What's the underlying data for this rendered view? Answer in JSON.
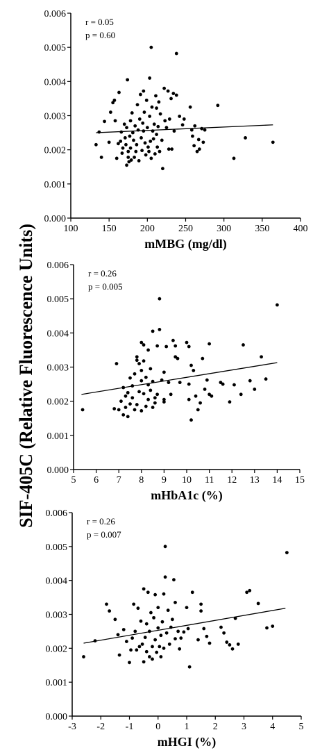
{
  "ylabel": "SIF-405C (Relative Fluorescence Units)",
  "chart_data": [
    {
      "type": "scatter",
      "xlabel": "mMBG (mg/dl)",
      "xlim": [
        100,
        400
      ],
      "xticks": [
        "100",
        "150",
        "200",
        "250",
        "300",
        "350",
        "400"
      ],
      "ylim": [
        0,
        0.006
      ],
      "yticks": [
        "0.000",
        "0.001",
        "0.002",
        "0.003",
        "0.004",
        "0.005",
        "0.006"
      ],
      "stats": [
        "r = 0.05",
        "p = 0.60"
      ],
      "fit_line": [
        [
          133,
          0.0025
        ],
        [
          364,
          0.00273
        ]
      ],
      "points": [
        [
          133,
          0.00215
        ],
        [
          137,
          0.00252
        ],
        [
          140,
          0.00178
        ],
        [
          144,
          0.00283
        ],
        [
          150,
          0.00222
        ],
        [
          152,
          0.0031
        ],
        [
          155,
          0.00338
        ],
        [
          157,
          0.00345
        ],
        [
          158,
          0.00285
        ],
        [
          160,
          0.00175
        ],
        [
          162,
          0.00218
        ],
        [
          163,
          0.00368
        ],
        [
          165,
          0.00225
        ],
        [
          166,
          0.00252
        ],
        [
          167,
          0.0019
        ],
        [
          168,
          0.00205
        ],
        [
          170,
          0.00275
        ],
        [
          171,
          0.00235
        ],
        [
          172,
          0.00215
        ],
        [
          173,
          0.00155
        ],
        [
          173,
          0.00265
        ],
        [
          174,
          0.00405
        ],
        [
          175,
          0.00178
        ],
        [
          175,
          0.00195
        ],
        [
          176,
          0.00165
        ],
        [
          177,
          0.0024
        ],
        [
          178,
          0.00285
        ],
        [
          178,
          0.00205
        ],
        [
          179,
          0.0017
        ],
        [
          180,
          0.00308
        ],
        [
          181,
          0.0025
        ],
        [
          182,
          0.00228
        ],
        [
          183,
          0.00178
        ],
        [
          184,
          0.0027
        ],
        [
          185,
          0.00195
        ],
        [
          186,
          0.00215
        ],
        [
          187,
          0.00332
        ],
        [
          188,
          0.00258
        ],
        [
          189,
          0.00168
        ],
        [
          190,
          0.0029
        ],
        [
          191,
          0.00362
        ],
        [
          192,
          0.00235
        ],
        [
          193,
          0.00198
        ],
        [
          194,
          0.00278
        ],
        [
          195,
          0.00372
        ],
        [
          195,
          0.00255
        ],
        [
          196,
          0.0031
        ],
        [
          197,
          0.0022
        ],
        [
          198,
          0.00185
        ],
        [
          199,
          0.00345
        ],
        [
          200,
          0.00265
        ],
        [
          201,
          0.00208
        ],
        [
          202,
          0.00195
        ],
        [
          203,
          0.00298
        ],
        [
          203,
          0.0041
        ],
        [
          204,
          0.00225
        ],
        [
          205,
          0.005
        ],
        [
          205,
          0.00175
        ],
        [
          206,
          0.00325
        ],
        [
          207,
          0.00255
        ],
        [
          208,
          0.00232
        ],
        [
          209,
          0.00275
        ],
        [
          210,
          0.00188
        ],
        [
          211,
          0.00358
        ],
        [
          212,
          0.00322
        ],
        [
          212,
          0.00245
        ],
        [
          213,
          0.00208
        ],
        [
          214,
          0.00268
        ],
        [
          215,
          0.0034
        ],
        [
          216,
          0.00195
        ],
        [
          217,
          0.00305
        ],
        [
          219,
          0.00228
        ],
        [
          220,
          0.00145
        ],
        [
          222,
          0.0038
        ],
        [
          223,
          0.00285
        ],
        [
          225,
          0.00265
        ],
        [
          227,
          0.00372
        ],
        [
          228,
          0.00202
        ],
        [
          229,
          0.0029
        ],
        [
          231,
          0.0035
        ],
        [
          232,
          0.00202
        ],
        [
          234,
          0.00365
        ],
        [
          235,
          0.00255
        ],
        [
          238,
          0.0036
        ],
        [
          238,
          0.00482
        ],
        [
          242,
          0.00298
        ],
        [
          246,
          0.00273
        ],
        [
          248,
          0.0029
        ],
        [
          256,
          0.00325
        ],
        [
          258,
          0.00258
        ],
        [
          259,
          0.0024
        ],
        [
          261,
          0.00212
        ],
        [
          262,
          0.0027
        ],
        [
          265,
          0.00195
        ],
        [
          267,
          0.0023
        ],
        [
          268,
          0.00202
        ],
        [
          271,
          0.00262
        ],
        [
          273,
          0.00222
        ],
        [
          275,
          0.00258
        ],
        [
          292,
          0.0033
        ],
        [
          313,
          0.00175
        ],
        [
          328,
          0.00235
        ],
        [
          364,
          0.00222
        ]
      ]
    },
    {
      "type": "scatter",
      "xlabel": "mHbA1c (%)",
      "xlim": [
        5,
        15
      ],
      "xticks": [
        "5",
        "6",
        "7",
        "8",
        "9",
        "10",
        "11",
        "12",
        "13",
        "14",
        "15"
      ],
      "ylim": [
        0,
        0.006
      ],
      "yticks": [
        "0.000",
        "0.001",
        "0.002",
        "0.003",
        "0.004",
        "0.005",
        "0.006"
      ],
      "stats": [
        "r = 0.26",
        "p = 0.005"
      ],
      "fit_line": [
        [
          5.35,
          0.0022
        ],
        [
          14.0,
          0.00313
        ]
      ],
      "points": [
        [
          5.4,
          0.00175
        ],
        [
          6.8,
          0.00178
        ],
        [
          6.9,
          0.0031
        ],
        [
          7.0,
          0.00175
        ],
        [
          7.1,
          0.002
        ],
        [
          7.2,
          0.0016
        ],
        [
          7.2,
          0.0024
        ],
        [
          7.3,
          0.00215
        ],
        [
          7.3,
          0.00182
        ],
        [
          7.4,
          0.00225
        ],
        [
          7.4,
          0.00155
        ],
        [
          7.5,
          0.00192
        ],
        [
          7.5,
          0.00268
        ],
        [
          7.6,
          0.0021
        ],
        [
          7.6,
          0.00245
        ],
        [
          7.7,
          0.00175
        ],
        [
          7.7,
          0.0028
        ],
        [
          7.8,
          0.0032
        ],
        [
          7.8,
          0.0019
        ],
        [
          7.8,
          0.0033
        ],
        [
          7.9,
          0.0031
        ],
        [
          7.9,
          0.00228
        ],
        [
          8.0,
          0.00372
        ],
        [
          8.0,
          0.0026
        ],
        [
          8.0,
          0.00172
        ],
        [
          8.0,
          0.0029
        ],
        [
          8.1,
          0.00365
        ],
        [
          8.1,
          0.00222
        ],
        [
          8.1,
          0.00318
        ],
        [
          8.2,
          0.00185
        ],
        [
          8.2,
          0.0027
        ],
        [
          8.3,
          0.00248
        ],
        [
          8.3,
          0.00205
        ],
        [
          8.3,
          0.0035
        ],
        [
          8.4,
          0.00232
        ],
        [
          8.4,
          0.00295
        ],
        [
          8.5,
          0.00182
        ],
        [
          8.5,
          0.00405
        ],
        [
          8.5,
          0.00258
        ],
        [
          8.6,
          0.0021
        ],
        [
          8.6,
          0.00195
        ],
        [
          8.7,
          0.00362
        ],
        [
          8.7,
          0.0022
        ],
        [
          8.8,
          0.0041
        ],
        [
          8.8,
          0.005
        ],
        [
          8.9,
          0.00262
        ],
        [
          9.0,
          0.00198
        ],
        [
          9.0,
          0.00205
        ],
        [
          9.0,
          0.00285
        ],
        [
          9.1,
          0.0036
        ],
        [
          9.2,
          0.00255
        ],
        [
          9.3,
          0.0022
        ],
        [
          9.4,
          0.00378
        ],
        [
          9.5,
          0.0033
        ],
        [
          9.5,
          0.00362
        ],
        [
          9.6,
          0.00325
        ],
        [
          9.7,
          0.00255
        ],
        [
          10.0,
          0.00372
        ],
        [
          10.1,
          0.0036
        ],
        [
          10.1,
          0.0025
        ],
        [
          10.1,
          0.00205
        ],
        [
          10.2,
          0.00305
        ],
        [
          10.2,
          0.00145
        ],
        [
          10.3,
          0.0029
        ],
        [
          10.4,
          0.00215
        ],
        [
          10.5,
          0.00175
        ],
        [
          10.6,
          0.00195
        ],
        [
          10.7,
          0.00325
        ],
        [
          10.8,
          0.00235
        ],
        [
          10.9,
          0.00262
        ],
        [
          11.0,
          0.00368
        ],
        [
          11.0,
          0.0022
        ],
        [
          11.1,
          0.00215
        ],
        [
          11.5,
          0.00255
        ],
        [
          11.6,
          0.0025
        ],
        [
          11.9,
          0.00198
        ],
        [
          12.1,
          0.00248
        ],
        [
          12.4,
          0.0022
        ],
        [
          12.5,
          0.00365
        ],
        [
          12.8,
          0.0026
        ],
        [
          13.0,
          0.00235
        ],
        [
          13.3,
          0.0033
        ],
        [
          13.5,
          0.00265
        ],
        [
          14.0,
          0.00482
        ]
      ]
    },
    {
      "type": "scatter",
      "xlabel": "mHGI (%)",
      "xlim": [
        -3,
        5
      ],
      "xticks": [
        "-3",
        "-2",
        "-1",
        "0",
        "1",
        "2",
        "3",
        "4",
        "5"
      ],
      "ylim": [
        0,
        0.006
      ],
      "yticks": [
        "0.000",
        "0.001",
        "0.002",
        "0.003",
        "0.004",
        "0.005",
        "0.006"
      ],
      "stats": [
        "r = 0.26",
        "p = 0.007"
      ],
      "fit_line": [
        [
          -2.6,
          0.00215
        ],
        [
          4.45,
          0.00318
        ]
      ],
      "points": [
        [
          -2.6,
          0.00175
        ],
        [
          -2.2,
          0.00222
        ],
        [
          -1.8,
          0.0033
        ],
        [
          -1.7,
          0.0031
        ],
        [
          -1.5,
          0.00285
        ],
        [
          -1.4,
          0.0024
        ],
        [
          -1.35,
          0.0018
        ],
        [
          -1.2,
          0.00255
        ],
        [
          -1.1,
          0.0022
        ],
        [
          -1.0,
          0.00158
        ],
        [
          -0.95,
          0.00195
        ],
        [
          -0.9,
          0.0023
        ],
        [
          -0.85,
          0.0033
        ],
        [
          -0.8,
          0.0025
        ],
        [
          -0.75,
          0.00195
        ],
        [
          -0.7,
          0.00318
        ],
        [
          -0.65,
          0.00205
        ],
        [
          -0.6,
          0.0028
        ],
        [
          -0.55,
          0.00212
        ],
        [
          -0.5,
          0.00375
        ],
        [
          -0.5,
          0.0016
        ],
        [
          -0.45,
          0.00232
        ],
        [
          -0.4,
          0.00272
        ],
        [
          -0.4,
          0.0019
        ],
        [
          -0.35,
          0.00365
        ],
        [
          -0.3,
          0.0025
        ],
        [
          -0.3,
          0.00175
        ],
        [
          -0.25,
          0.00305
        ],
        [
          -0.2,
          0.00205
        ],
        [
          -0.2,
          0.00168
        ],
        [
          -0.15,
          0.0029
        ],
        [
          -0.1,
          0.00358
        ],
        [
          -0.1,
          0.00225
        ],
        [
          -0.05,
          0.00188
        ],
        [
          0.0,
          0.0032
        ],
        [
          0.0,
          0.0026
        ],
        [
          0.05,
          0.00205
        ],
        [
          0.1,
          0.00238
        ],
        [
          0.1,
          0.00175
        ],
        [
          0.15,
          0.00278
        ],
        [
          0.2,
          0.0036
        ],
        [
          0.2,
          0.002
        ],
        [
          0.25,
          0.005
        ],
        [
          0.25,
          0.0041
        ],
        [
          0.3,
          0.00245
        ],
        [
          0.35,
          0.00312
        ],
        [
          0.4,
          0.00212
        ],
        [
          0.45,
          0.00262
        ],
        [
          0.5,
          0.00285
        ],
        [
          0.55,
          0.00402
        ],
        [
          0.6,
          0.00228
        ],
        [
          0.6,
          0.00335
        ],
        [
          0.7,
          0.0025
        ],
        [
          0.75,
          0.00198
        ],
        [
          0.8,
          0.0023
        ],
        [
          0.9,
          0.00248
        ],
        [
          1.0,
          0.0032
        ],
        [
          1.05,
          0.00258
        ],
        [
          1.1,
          0.00145
        ],
        [
          1.2,
          0.00365
        ],
        [
          1.4,
          0.00225
        ],
        [
          1.5,
          0.0031
        ],
        [
          1.5,
          0.0033
        ],
        [
          1.6,
          0.00258
        ],
        [
          1.7,
          0.00235
        ],
        [
          1.8,
          0.00215
        ],
        [
          2.2,
          0.00262
        ],
        [
          2.3,
          0.00245
        ],
        [
          2.4,
          0.00218
        ],
        [
          2.5,
          0.0021
        ],
        [
          2.6,
          0.00198
        ],
        [
          2.7,
          0.00288
        ],
        [
          2.8,
          0.00212
        ],
        [
          3.1,
          0.00365
        ],
        [
          3.2,
          0.0037
        ],
        [
          3.5,
          0.00332
        ],
        [
          3.8,
          0.0026
        ],
        [
          4.0,
          0.00265
        ],
        [
          4.5,
          0.00482
        ]
      ]
    }
  ]
}
